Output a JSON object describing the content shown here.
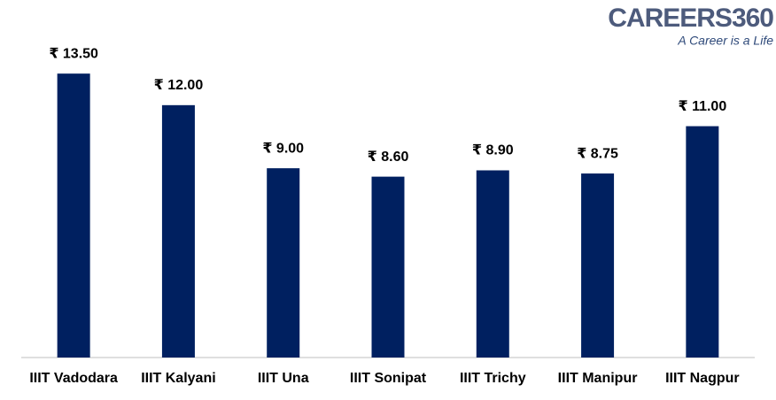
{
  "logo": {
    "name": "CAREERS360",
    "tagline": "A Career is a Life"
  },
  "chart_data": {
    "type": "bar",
    "categories": [
      "IIIT Vadodara",
      "IIIT Kalyani",
      "IIIT Una",
      "IIIT Sonipat",
      "IIIT Trichy",
      "IIIT Manipur",
      "IIIT Nagpur"
    ],
    "values": [
      13.5,
      12,
      9,
      8.6,
      8.9,
      8.75,
      11
    ],
    "value_labels": [
      "₹ 13.50",
      "₹ 12.00",
      "₹ 9.00",
      "₹ 8.60",
      "₹ 8.90",
      "₹ 8.75",
      "₹ 11.00"
    ],
    "color": "#002060",
    "ylim": [
      0,
      17
    ]
  }
}
